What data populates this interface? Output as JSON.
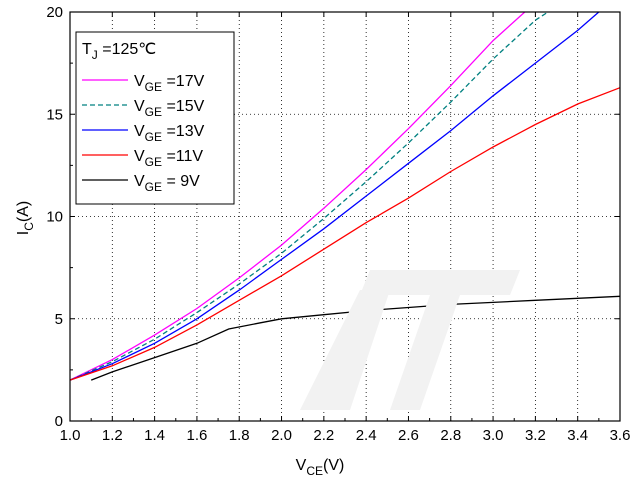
{
  "chart_data": {
    "type": "line",
    "xlabel": {
      "main": "V",
      "sub": "CE",
      "unit": "(V)"
    },
    "ylabel": {
      "main": "I",
      "sub": "C",
      "unit": "(A)"
    },
    "xlim": [
      1.0,
      3.6
    ],
    "ylim": [
      0,
      20
    ],
    "xticks": [
      "1.0",
      "1.2",
      "1.4",
      "1.6",
      "1.8",
      "2.0",
      "2.2",
      "2.4",
      "2.6",
      "2.8",
      "3.0",
      "3.2",
      "3.4",
      "3.6"
    ],
    "yticks": [
      "0",
      "5",
      "10",
      "15",
      "20"
    ],
    "grid": true,
    "legend_position": "top-left",
    "legend_title": {
      "main": "T",
      "sub": "J",
      "rest": " =125℃"
    },
    "series": [
      {
        "label_main": "V",
        "label_sub": "GE",
        "label_rest": " =17V",
        "color": "#ff00ff",
        "dash": "solid",
        "x": [
          1.0,
          1.2,
          1.4,
          1.6,
          1.8,
          2.0,
          2.2,
          2.4,
          2.6,
          2.8,
          3.0,
          3.15
        ],
        "y": [
          2.0,
          3.0,
          4.2,
          5.5,
          7.0,
          8.6,
          10.4,
          12.3,
          14.3,
          16.4,
          18.6,
          20.0
        ]
      },
      {
        "label_main": "V",
        "label_sub": "GE",
        "label_rest": " =15V",
        "color": "#008080",
        "dash": "dashed",
        "x": [
          1.0,
          1.2,
          1.4,
          1.6,
          1.8,
          2.0,
          2.2,
          2.4,
          2.6,
          2.8,
          3.0,
          3.2,
          3.26
        ],
        "y": [
          2.0,
          2.9,
          4.0,
          5.3,
          6.7,
          8.2,
          9.9,
          11.7,
          13.6,
          15.6,
          17.7,
          19.6,
          20.0
        ]
      },
      {
        "label_main": "V",
        "label_sub": "GE",
        "label_rest": " =13V",
        "color": "#0000ff",
        "dash": "solid",
        "x": [
          1.0,
          1.2,
          1.4,
          1.6,
          1.8,
          2.0,
          2.2,
          2.4,
          2.6,
          2.8,
          3.0,
          3.2,
          3.4,
          3.5
        ],
        "y": [
          2.0,
          2.8,
          3.8,
          5.0,
          6.4,
          7.9,
          9.4,
          11.0,
          12.6,
          14.2,
          15.9,
          17.5,
          19.1,
          20.0
        ]
      },
      {
        "label_main": "V",
        "label_sub": "GE",
        "label_rest": " =11V",
        "color": "#ff0000",
        "dash": "solid",
        "x": [
          1.0,
          1.2,
          1.4,
          1.6,
          1.8,
          2.0,
          2.2,
          2.4,
          2.6,
          2.8,
          3.0,
          3.2,
          3.4,
          3.6
        ],
        "y": [
          2.0,
          2.7,
          3.6,
          4.7,
          5.9,
          7.1,
          8.4,
          9.7,
          10.9,
          12.2,
          13.4,
          14.5,
          15.5,
          16.3
        ]
      },
      {
        "label_main": "V",
        "label_sub": "GE",
        "label_rest": " = 9V",
        "color": "#000000",
        "dash": "solid",
        "x": [
          1.1,
          1.2,
          1.4,
          1.6,
          1.75,
          1.9,
          2.0,
          2.2,
          2.4,
          2.6,
          2.8,
          3.0,
          3.2,
          3.4,
          3.6
        ],
        "y": [
          2.0,
          2.4,
          3.1,
          3.8,
          4.5,
          4.8,
          5.0,
          5.2,
          5.4,
          5.55,
          5.7,
          5.8,
          5.9,
          6.0,
          6.1
        ]
      }
    ]
  }
}
